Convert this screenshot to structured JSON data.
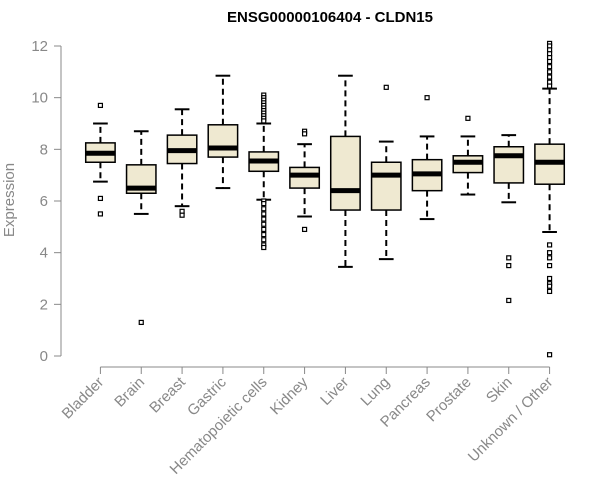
{
  "chart_data": {
    "type": "boxplot",
    "title": "ENSG00000106404 - CLDN15",
    "ylabel": "Expression",
    "xlabel": "",
    "ylim": [
      0,
      12
    ],
    "yticks": [
      0,
      2,
      4,
      6,
      8,
      10,
      12
    ],
    "grid": false,
    "box_fill": "#efe9d1",
    "box_stroke": "#000000",
    "axis_color": "#888888",
    "categories": [
      "Bladder",
      "Brain",
      "Breast",
      "Gastric",
      "Hematopoietic cells",
      "Kidney",
      "Liver",
      "Lung",
      "Pancreas",
      "Prostate",
      "Skin",
      "Unknown / Other"
    ],
    "boxes": [
      {
        "label": "Bladder",
        "q1": 7.5,
        "median": 7.85,
        "q3": 8.25,
        "whisker_low": 6.75,
        "whisker_high": 9.0,
        "outliers": [
          9.7,
          6.1,
          5.5
        ]
      },
      {
        "label": "Brain",
        "q1": 6.3,
        "median": 6.5,
        "q3": 7.4,
        "whisker_low": 5.5,
        "whisker_high": 8.7,
        "outliers": [
          1.3
        ]
      },
      {
        "label": "Breast",
        "q1": 7.45,
        "median": 7.95,
        "q3": 8.55,
        "whisker_low": 5.8,
        "whisker_high": 9.55,
        "outliers": [
          5.6,
          5.45
        ]
      },
      {
        "label": "Gastric",
        "q1": 7.7,
        "median": 8.05,
        "q3": 8.95,
        "whisker_low": 6.5,
        "whisker_high": 10.85,
        "outliers": []
      },
      {
        "label": "Hematopoietic cells",
        "q1": 7.15,
        "median": 7.55,
        "q3": 7.9,
        "whisker_low": 6.05,
        "whisker_high": 9.0,
        "outliers": [
          10.1,
          10.0,
          9.9,
          9.8,
          9.7,
          9.6,
          9.5,
          9.4,
          9.3,
          9.2,
          9.1,
          6.0,
          5.9,
          5.7,
          5.5,
          5.3,
          5.1,
          4.9,
          4.7,
          4.5,
          4.3,
          4.2
        ]
      },
      {
        "label": "Kidney",
        "q1": 6.5,
        "median": 7.0,
        "q3": 7.3,
        "whisker_low": 5.4,
        "whisker_high": 8.2,
        "outliers": [
          8.7,
          8.6,
          4.9
        ]
      },
      {
        "label": "Liver",
        "q1": 5.65,
        "median": 6.4,
        "q3": 8.5,
        "whisker_low": 3.45,
        "whisker_high": 10.85,
        "outliers": []
      },
      {
        "label": "Lung",
        "q1": 5.65,
        "median": 7.0,
        "q3": 7.5,
        "whisker_low": 3.75,
        "whisker_high": 8.3,
        "outliers": [
          10.4
        ]
      },
      {
        "label": "Pancreas",
        "q1": 6.4,
        "median": 7.05,
        "q3": 7.6,
        "whisker_low": 5.3,
        "whisker_high": 8.5,
        "outliers": [
          10.0
        ]
      },
      {
        "label": "Prostate",
        "q1": 7.1,
        "median": 7.5,
        "q3": 7.75,
        "whisker_low": 6.25,
        "whisker_high": 8.5,
        "outliers": [
          9.2
        ]
      },
      {
        "label": "Skin",
        "q1": 6.7,
        "median": 7.75,
        "q3": 8.1,
        "whisker_low": 5.95,
        "whisker_high": 8.55,
        "outliers": [
          3.8,
          3.5,
          2.15
        ]
      },
      {
        "label": "Unknown / Other",
        "q1": 6.65,
        "median": 7.5,
        "q3": 8.2,
        "whisker_low": 4.8,
        "whisker_high": 10.35,
        "outliers": [
          12.1,
          12.0,
          11.85,
          11.7,
          11.55,
          11.4,
          11.2,
          11.0,
          10.8,
          10.6,
          10.45,
          4.3,
          4.0,
          3.8,
          3.5,
          3.0,
          2.8,
          2.7,
          2.5,
          0.05
        ]
      }
    ]
  }
}
